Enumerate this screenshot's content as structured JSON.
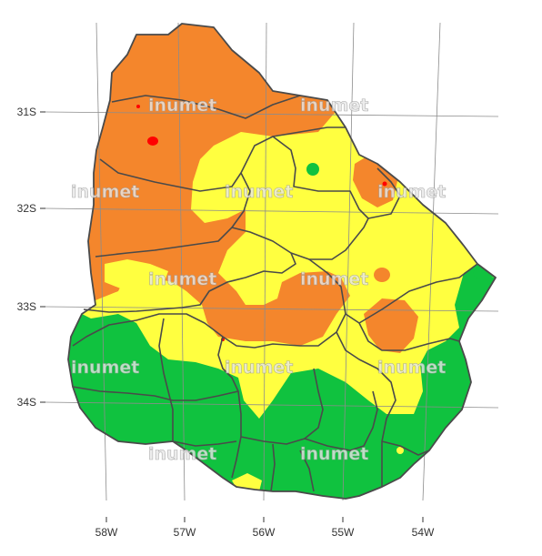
{
  "map": {
    "axis": {
      "y_ticks": [
        "31S",
        "32S",
        "33S",
        "34S"
      ],
      "x_ticks": [
        "58W",
        "57W",
        "56W",
        "55W",
        "54W"
      ]
    },
    "watermark": "inumet",
    "colors": {
      "green": "#10c23f",
      "yellow": "#ffff40",
      "orange": "#f4862c",
      "red": "#ff0000",
      "border": "#4a4a4a",
      "graticule": "#8c8c8c"
    }
  }
}
